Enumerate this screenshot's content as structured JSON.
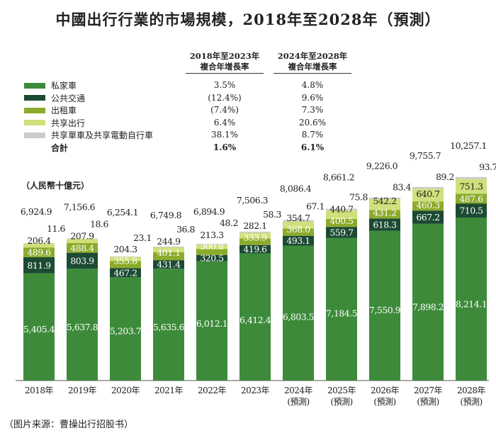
{
  "title": "中國出行行業的市場規模，2018年至2028年（預測）",
  "cagr_headers": [
    [
      "2018年至2023年",
      "複合年增長率"
    ],
    [
      "2024年至2028年",
      "複合年增長率"
    ]
  ],
  "legend": [
    {
      "label": "私家車",
      "color": "#3d8b3a",
      "cagr1": "3.5%",
      "cagr2": "4.8%"
    },
    {
      "label": "公共交通",
      "color": "#1c4a33",
      "cagr1": "(12.4%)",
      "cagr2": "9.6%"
    },
    {
      "label": "出租車",
      "color": "#8cab2b",
      "cagr1": "(7.4%)",
      "cagr2": "7.3%"
    },
    {
      "label": "共享出行",
      "color": "#cfe07c",
      "cagr1": "6.4%",
      "cagr2": "20.6%"
    },
    {
      "label": "共享單車及共享電動自行車",
      "color": "#cccccc",
      "cagr1": "38.1%",
      "cagr2": "8.7%"
    }
  ],
  "total_row": {
    "label": "合計",
    "cagr1": "1.6%",
    "cagr2": "6.1%"
  },
  "unit": "（人民幣十億元）",
  "footer": "（图片来源：曹操出行招股书）",
  "chart_data": {
    "type": "bar",
    "stacked": true,
    "title": "中國出行行業的市場規模，2018年至2028年（預測）",
    "ylabel": "人民幣十億元",
    "categories": [
      "2018年",
      "2019年",
      "2020年",
      "2021年",
      "2022年",
      "2023年",
      "2024年",
      "2025年",
      "2026年",
      "2027年",
      "2028年"
    ],
    "forecast_note": "(預測)",
    "forecast_from_index": 6,
    "series": [
      {
        "name": "私家車",
        "values": [
          5405.4,
          5637.8,
          5203.7,
          5635.6,
          6012.1,
          6412.4,
          6803.5,
          7184.5,
          7550.9,
          7898.2,
          8214.1
        ],
        "labels": [
          "5,405.4",
          "5,637.8",
          "5,203.7",
          "5,635.6",
          "6,012.1",
          "6,412.4",
          "6,803.5",
          "7,184.5",
          "7,550.9",
          "7,898.2",
          "8,214.1"
        ]
      },
      {
        "name": "公共交通",
        "values": [
          811.9,
          803.9,
          467.2,
          431.4,
          320.5,
          419.6,
          493.1,
          559.7,
          618.3,
          667.2,
          710.5
        ],
        "labels": [
          "811.9",
          "803.9",
          "467.2",
          "431.4",
          "320.5",
          "419.6",
          "493.1",
          "559.7",
          "618.3",
          "667.2",
          "710.5"
        ]
      },
      {
        "name": "出租車",
        "values": [
          489.6,
          488.4,
          355.8,
          401.1,
          300.8,
          333.9,
          368.0,
          400.5,
          431.2,
          460.3,
          487.6
        ],
        "labels": [
          "489.6",
          "488.4",
          "355.8",
          "401.1",
          "300.8",
          "333.9",
          "368.0",
          "400.5",
          "431.2",
          "460.3",
          "487.6"
        ]
      },
      {
        "name": "共享出行",
        "values": [
          206.4,
          207.9,
          204.3,
          244.9,
          213.3,
          282.1,
          354.7,
          440.7,
          542.2,
          640.7,
          751.3
        ],
        "labels": [
          "206.4",
          "207.9",
          "204.3",
          "244.9",
          "213.3",
          "282.1",
          "354.7",
          "440.7",
          "542.2",
          "640.7",
          "751.3"
        ]
      },
      {
        "name": "共享單車及共享電動自行車",
        "values": [
          11.6,
          18.6,
          23.1,
          36.8,
          48.2,
          58.3,
          67.1,
          75.8,
          83.4,
          89.2,
          93.7
        ],
        "labels": [
          "11.6",
          "18.6",
          "23.1",
          "36.8",
          "48.2",
          "58.3",
          "67.1",
          "75.8",
          "83.4",
          "89.2",
          "93.7"
        ]
      }
    ],
    "totals": [
      6924.9,
      7156.6,
      6254.1,
      6749.8,
      6894.9,
      7506.3,
      8086.4,
      8661.2,
      9226.0,
      9755.7,
      10257.1
    ],
    "total_labels": [
      "6,924.9",
      "7,156.6",
      "6,254.1",
      "6,749.8",
      "6,894.9",
      "7,506.3",
      "8,086.4",
      "8,661.2",
      "9,226.0",
      "9,755.7",
      "10,257.1"
    ],
    "grid": false,
    "legend_position": "top-left"
  }
}
